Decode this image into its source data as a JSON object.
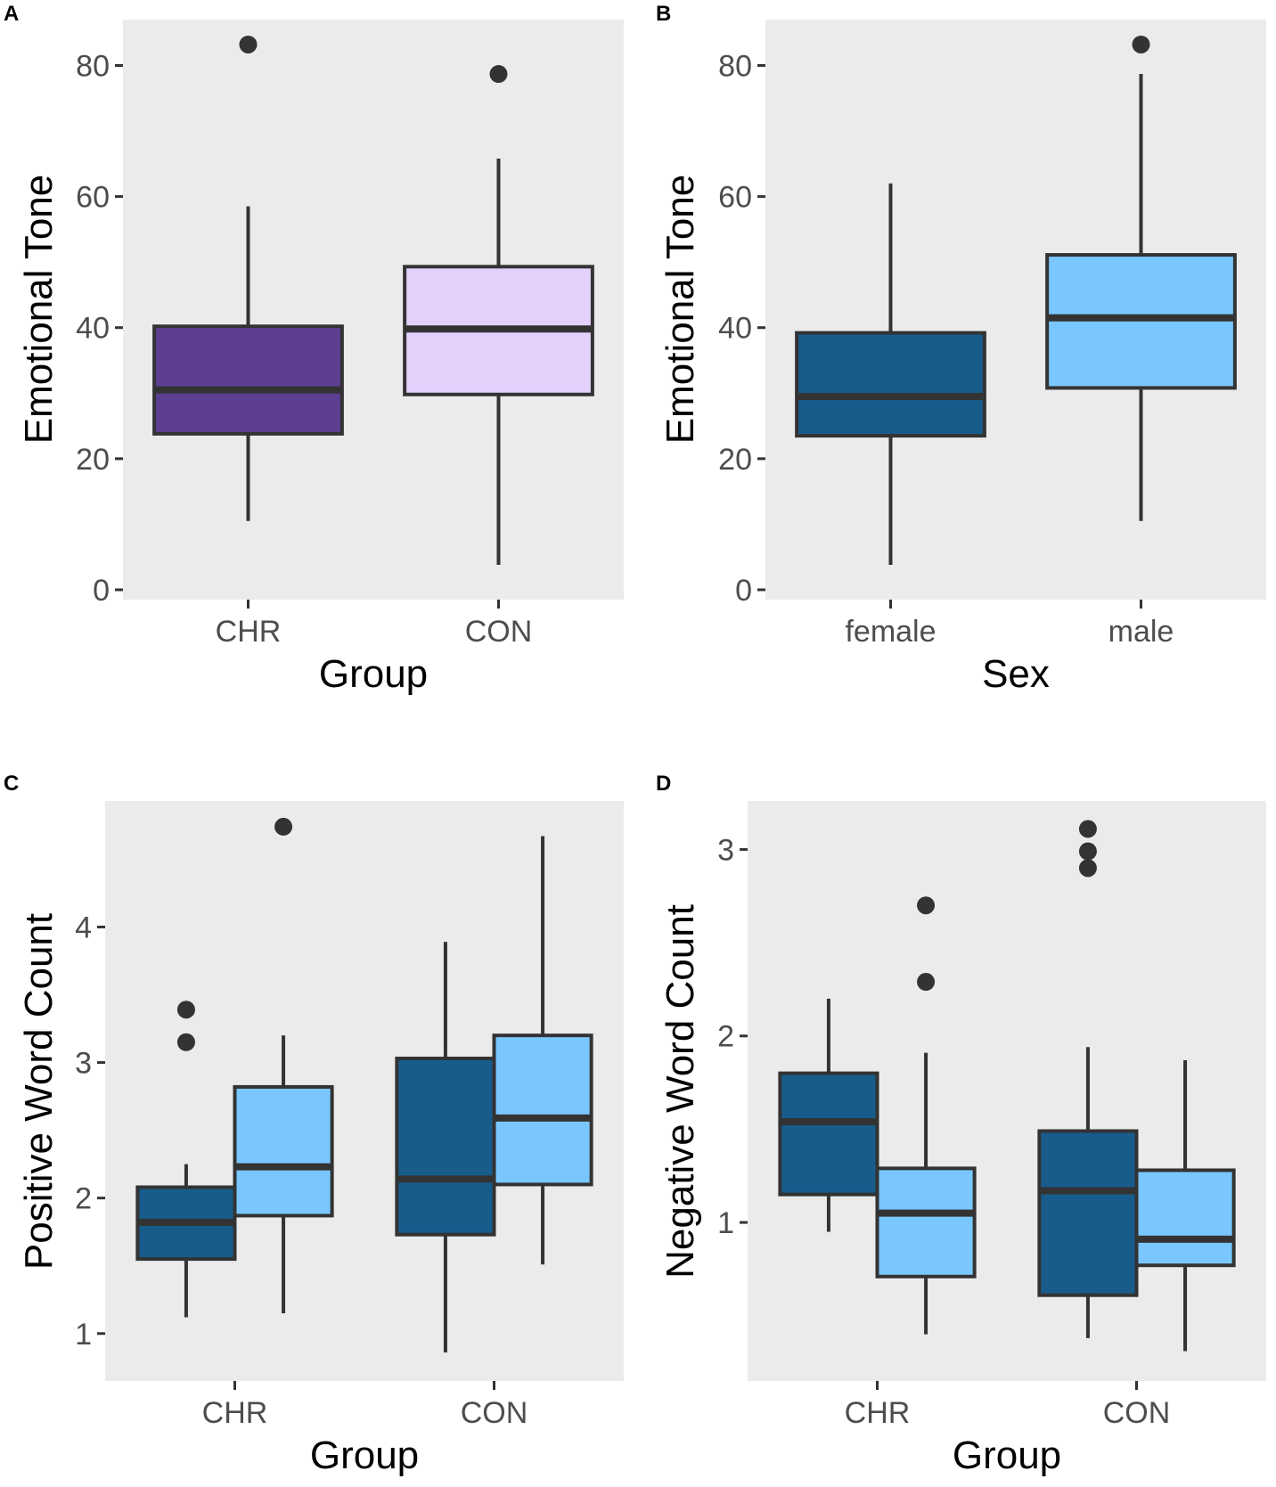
{
  "colors": {
    "panel_bg": "#ebebeb",
    "box_outline": "#333333",
    "chr_purple": "#5c3f93",
    "con_lavender": "#e3d1fc",
    "female_dark_blue": "#175c8b",
    "male_light_blue": "#7ac7ff",
    "tick_text": "#4d4d4d"
  },
  "chart_data": [
    {
      "panel_label": "A",
      "type": "boxplot",
      "xlabel": "Group",
      "ylabel": "Emotional Tone",
      "ylim": [
        -1.5,
        87
      ],
      "y_ticks": [
        0,
        20,
        40,
        60,
        80
      ],
      "y_tick_labels": [
        "0",
        "20",
        "40",
        "60",
        "80"
      ],
      "categories": [
        "CHR",
        "CON"
      ],
      "series": [
        {
          "name": "Group",
          "boxes": [
            {
              "category": "CHR",
              "whisker_low": 10.5,
              "q1": 23.8,
              "median": 30.5,
              "q3": 40.2,
              "whisker_high": 58.5,
              "outliers": [
                83.2
              ],
              "color": "#5c3f93"
            },
            {
              "category": "CON",
              "whisker_low": 3.8,
              "q1": 29.8,
              "median": 39.8,
              "q3": 49.3,
              "whisker_high": 65.8,
              "outliers": [
                78.7
              ],
              "color": "#e3d1fc"
            }
          ]
        }
      ]
    },
    {
      "panel_label": "B",
      "type": "boxplot",
      "xlabel": "Sex",
      "ylabel": "Emotional Tone",
      "ylim": [
        -1.5,
        87
      ],
      "y_ticks": [
        0,
        20,
        40,
        60,
        80
      ],
      "y_tick_labels": [
        "0",
        "20",
        "40",
        "60",
        "80"
      ],
      "categories": [
        "female",
        "male"
      ],
      "series": [
        {
          "name": "Sex",
          "boxes": [
            {
              "category": "female",
              "whisker_low": 3.8,
              "q1": 23.5,
              "median": 29.5,
              "q3": 39.2,
              "whisker_high": 62.0,
              "outliers": [],
              "color": "#175c8b"
            },
            {
              "category": "male",
              "whisker_low": 10.5,
              "q1": 30.8,
              "median": 41.5,
              "q3": 51.1,
              "whisker_high": 78.7,
              "outliers": [
                83.2
              ],
              "color": "#7ac7ff"
            }
          ]
        }
      ]
    },
    {
      "panel_label": "C",
      "type": "boxplot",
      "xlabel": "Group",
      "ylabel": "Positive Word Count",
      "ylim": [
        0.65,
        4.93
      ],
      "y_ticks": [
        1,
        2,
        3,
        4
      ],
      "y_tick_labels": [
        "1",
        "2",
        "3",
        "4"
      ],
      "categories": [
        "CHR",
        "CON"
      ],
      "series": [
        {
          "name": "female",
          "boxes": [
            {
              "category": "CHR",
              "whisker_low": 1.12,
              "q1": 1.55,
              "median": 1.82,
              "q3": 2.08,
              "whisker_high": 2.25,
              "outliers": [
                3.15,
                3.39
              ],
              "color": "#175c8b"
            },
            {
              "category": "CON",
              "whisker_low": 0.86,
              "q1": 1.73,
              "median": 2.14,
              "q3": 3.03,
              "whisker_high": 3.89,
              "outliers": [],
              "color": "#175c8b"
            }
          ]
        },
        {
          "name": "male",
          "boxes": [
            {
              "category": "CHR",
              "whisker_low": 1.15,
              "q1": 1.87,
              "median": 2.23,
              "q3": 2.82,
              "whisker_high": 3.2,
              "outliers": [
                4.74
              ],
              "color": "#7ac7ff"
            },
            {
              "category": "CON",
              "whisker_low": 1.51,
              "q1": 2.1,
              "median": 2.59,
              "q3": 3.2,
              "whisker_high": 4.67,
              "outliers": [],
              "color": "#7ac7ff"
            }
          ]
        }
      ]
    },
    {
      "panel_label": "D",
      "type": "boxplot",
      "xlabel": "Group",
      "ylabel": "Negative Word Count",
      "ylim": [
        0.15,
        3.26
      ],
      "y_ticks": [
        1,
        2,
        3
      ],
      "y_tick_labels": [
        "1",
        "2",
        "3"
      ],
      "categories": [
        "CHR",
        "CON"
      ],
      "series": [
        {
          "name": "female",
          "boxes": [
            {
              "category": "CHR",
              "whisker_low": 0.95,
              "q1": 1.15,
              "median": 1.54,
              "q3": 1.8,
              "whisker_high": 2.2,
              "outliers": [],
              "color": "#175c8b"
            },
            {
              "category": "CON",
              "whisker_low": 0.38,
              "q1": 0.61,
              "median": 1.17,
              "q3": 1.49,
              "whisker_high": 1.94,
              "outliers": [
                2.9,
                2.99,
                3.11
              ],
              "color": "#175c8b"
            }
          ]
        },
        {
          "name": "male",
          "boxes": [
            {
              "category": "CHR",
              "whisker_low": 0.4,
              "q1": 0.71,
              "median": 1.05,
              "q3": 1.29,
              "whisker_high": 1.91,
              "outliers": [
                2.29,
                2.7
              ],
              "color": "#7ac7ff"
            },
            {
              "category": "CON",
              "whisker_low": 0.31,
              "q1": 0.77,
              "median": 0.91,
              "q3": 1.28,
              "whisker_high": 1.87,
              "outliers": [],
              "color": "#7ac7ff"
            }
          ]
        }
      ]
    }
  ]
}
